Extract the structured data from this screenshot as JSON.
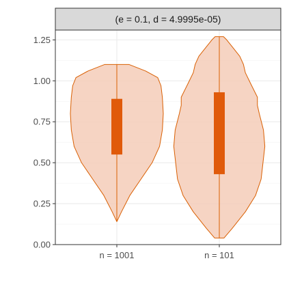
{
  "chart_data": {
    "type": "violin",
    "facet_label": "(e = 0.1, d = 4.9995e-05)",
    "categories": [
      "n = 1001",
      "n = 101"
    ],
    "ylim": [
      0,
      1.31
    ],
    "y_ticks": [
      0.0,
      0.25,
      0.5,
      0.75,
      1.0,
      1.25
    ],
    "y_tick_labels": [
      "0.00",
      "0.25",
      "0.50",
      "0.75",
      "1.00",
      "1.25"
    ],
    "grid": true,
    "fill_color": "#f5cdb8",
    "line_color": "#d95f02",
    "box_color": "#e05a0a",
    "violins": [
      {
        "category": "n = 1001",
        "min": 0.14,
        "max": 1.1,
        "q1": 0.55,
        "q3": 0.89,
        "profile": [
          [
            0.14,
            0.0
          ],
          [
            0.2,
            0.1
          ],
          [
            0.3,
            0.28
          ],
          [
            0.4,
            0.52
          ],
          [
            0.5,
            0.76
          ],
          [
            0.6,
            0.92
          ],
          [
            0.7,
            0.98
          ],
          [
            0.8,
            1.0
          ],
          [
            0.9,
            0.98
          ],
          [
            0.97,
            0.95
          ],
          [
            1.02,
            0.88
          ],
          [
            1.06,
            0.62
          ],
          [
            1.1,
            0.26
          ]
        ]
      },
      {
        "category": "n = 101",
        "min": 0.04,
        "max": 1.27,
        "q1": 0.43,
        "q3": 0.93,
        "profile": [
          [
            0.04,
            0.1
          ],
          [
            0.1,
            0.28
          ],
          [
            0.2,
            0.56
          ],
          [
            0.3,
            0.78
          ],
          [
            0.4,
            0.9
          ],
          [
            0.5,
            0.94
          ],
          [
            0.6,
            0.98
          ],
          [
            0.7,
            0.95
          ],
          [
            0.8,
            0.86
          ],
          [
            0.85,
            0.82
          ],
          [
            0.9,
            0.82
          ],
          [
            0.98,
            0.68
          ],
          [
            1.05,
            0.56
          ],
          [
            1.1,
            0.52
          ],
          [
            1.15,
            0.44
          ],
          [
            1.2,
            0.3
          ],
          [
            1.25,
            0.16
          ],
          [
            1.27,
            0.09
          ]
        ]
      }
    ]
  }
}
